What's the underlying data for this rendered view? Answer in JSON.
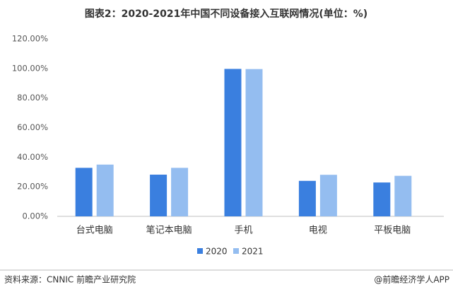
{
  "chart_data": {
    "type": "bar",
    "title": "图表2：2020-2021年中国不同设备接入互联网情况(单位：%)",
    "categories": [
      "台式电脑",
      "笔记本电脑",
      "手机",
      "电视",
      "平板电脑"
    ],
    "series": [
      {
        "name": "2020",
        "color": "#3a7fdf",
        "values": [
          32.8,
          28.2,
          99.7,
          24.0,
          22.9
        ]
      },
      {
        "name": "2021",
        "color": "#94bdf0",
        "values": [
          35.0,
          32.8,
          99.6,
          28.1,
          27.4
        ]
      }
    ],
    "ylim": [
      0,
      120
    ],
    "yticks": [
      {
        "value": 0,
        "label": "0.00%"
      },
      {
        "value": 20,
        "label": "20.00%"
      },
      {
        "value": 40,
        "label": "40.00%"
      },
      {
        "value": 60,
        "label": "60.00%"
      },
      {
        "value": 80,
        "label": "80.00%"
      },
      {
        "value": 100,
        "label": "100.00%"
      },
      {
        "value": 120,
        "label": "120.00%"
      }
    ],
    "grid": false,
    "legend": "bottom",
    "source": "资料来源：CNNIC 前瞻产业研究院",
    "credit": "@前瞻经济学人APP"
  }
}
